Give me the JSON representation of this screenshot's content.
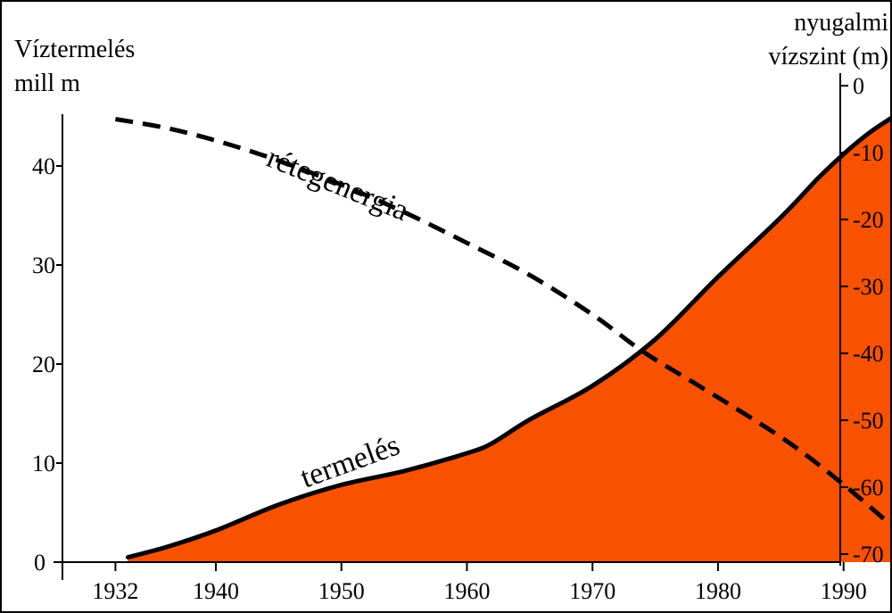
{
  "chart_data": {
    "type": "area",
    "left_axis": {
      "title_lines": [
        "Víztermelés",
        "mill m"
      ],
      "ticks": [
        0,
        10,
        20,
        30,
        40
      ],
      "ylim": [
        0,
        45
      ]
    },
    "right_axis": {
      "title_lines": [
        "nyugalmi",
        "vízszint (m)"
      ],
      "ticks": [
        0,
        -10,
        -20,
        -30,
        -40,
        -50,
        -60,
        -70
      ],
      "tick_labels": [
        "0",
        "-10",
        "-20",
        "-30",
        "-40",
        "-50",
        "-60",
        "-70"
      ],
      "ylim": [
        -72,
        0
      ]
    },
    "x_axis": {
      "ticks": [
        1932,
        1940,
        1950,
        1960,
        1970,
        1980,
        1990
      ],
      "xlim": [
        1926,
        1998
      ]
    },
    "series": [
      {
        "name": "termelés",
        "axis": "left",
        "style": "solid-filled",
        "fill": "#f85200",
        "x": [
          1933,
          1936,
          1940,
          1945,
          1950,
          1955,
          1960,
          1962,
          1965,
          1970,
          1975,
          1980,
          1985,
          1988,
          1990,
          1992,
          1994
        ],
        "y": [
          0.5,
          1.5,
          3.2,
          5.8,
          7.8,
          9.2,
          11,
          12,
          14.4,
          17.8,
          22.5,
          28.8,
          34.8,
          38.8,
          41.2,
          43.3,
          45
        ]
      },
      {
        "name": "rétegenergia",
        "axis": "right",
        "style": "dashed",
        "x": [
          1932,
          1936,
          1940,
          1945,
          1950,
          1955,
          1960,
          1965,
          1970,
          1974,
          1978,
          1982,
          1986,
          1990,
          1994
        ],
        "y": [
          -5,
          -6.3,
          -8.2,
          -11.2,
          -14.8,
          -18.9,
          -23.5,
          -28.3,
          -34.2,
          -39.7,
          -44.3,
          -48.9,
          -53.8,
          -59.6,
          -66
        ]
      }
    ],
    "annotations": [
      "rétegenergia",
      "termelés"
    ]
  }
}
